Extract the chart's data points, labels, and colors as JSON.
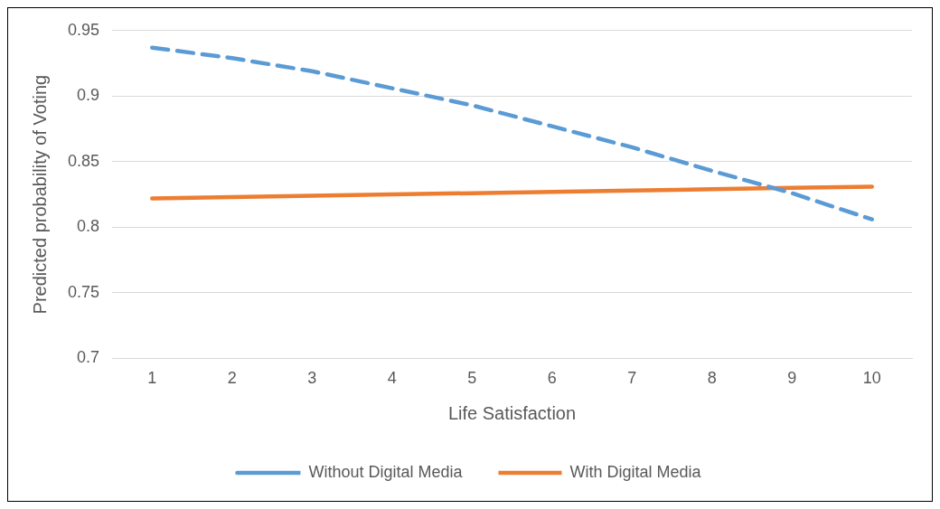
{
  "chart_data": {
    "type": "line",
    "xlabel": "Life Satisfaction",
    "ylabel": "Predicted probability of Voting",
    "categories": [
      "1",
      "2",
      "3",
      "4",
      "5",
      "6",
      "7",
      "8",
      "9",
      "10"
    ],
    "series": [
      {
        "name": "Without Digital Media",
        "color": "#5b9bd5",
        "line_style": "dashed",
        "values": [
          0.937,
          0.929,
          0.919,
          0.906,
          0.893,
          0.877,
          0.861,
          0.843,
          0.826,
          0.806
        ]
      },
      {
        "name": "With Digital Media",
        "color": "#ed7d31",
        "line_style": "solid",
        "values": [
          0.822,
          0.823,
          0.824,
          0.825,
          0.826,
          0.827,
          0.828,
          0.829,
          0.83,
          0.831
        ]
      }
    ],
    "ylim": [
      0.7,
      0.95
    ],
    "yticks": [
      0.7,
      0.75,
      0.8,
      0.85,
      0.9,
      0.95
    ],
    "grid": "y",
    "legend": "bottom",
    "marker": "none"
  }
}
